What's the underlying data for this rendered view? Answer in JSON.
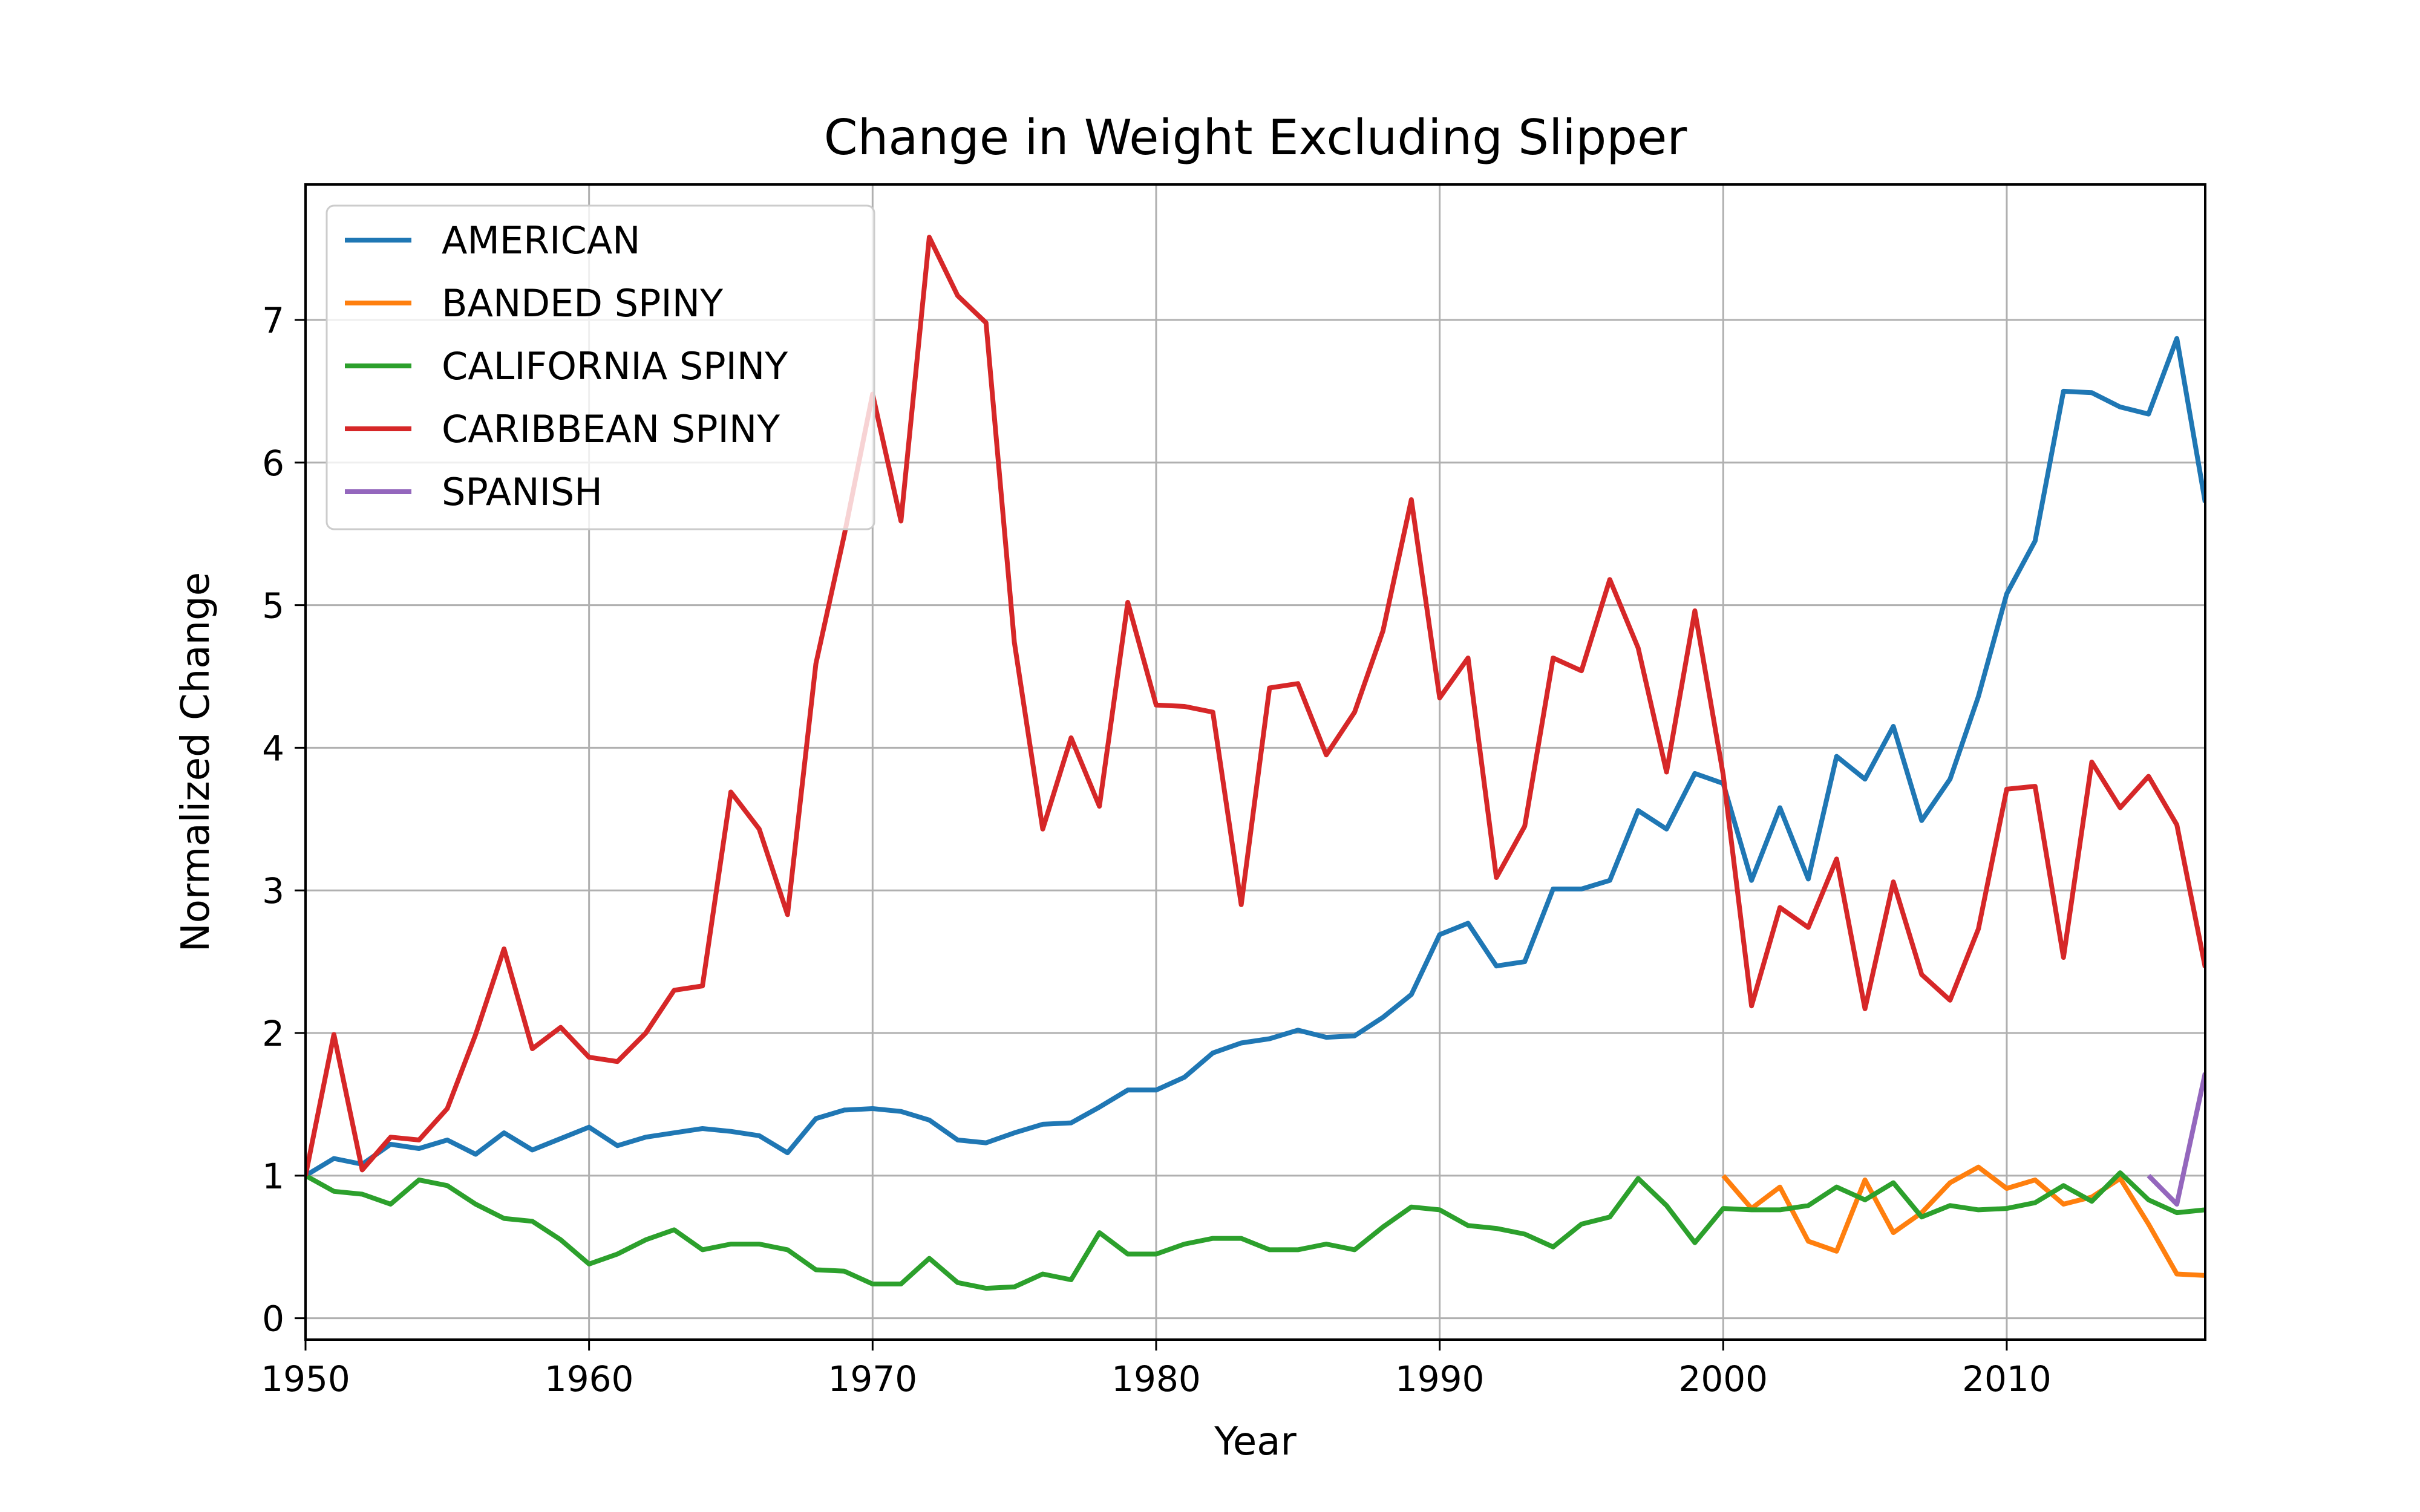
{
  "chart_data": {
    "type": "line",
    "title": "Change in Weight Excluding Slipper",
    "xlabel": "Year",
    "ylabel": "Normalized Change",
    "xlim": [
      1950,
      2017
    ],
    "ylim": [
      -0.15,
      7.95
    ],
    "xticks": [
      1950,
      1960,
      1970,
      1980,
      1990,
      2000,
      2010
    ],
    "yticks": [
      0,
      1,
      2,
      3,
      4,
      5,
      6,
      7
    ],
    "grid": true,
    "legend_position": "top-left",
    "series": [
      {
        "name": "AMERICAN",
        "color": "#1f77b4",
        "x_start": 1950,
        "values": [
          1.0,
          1.12,
          1.08,
          1.22,
          1.19,
          1.25,
          1.15,
          1.3,
          1.18,
          1.26,
          1.34,
          1.21,
          1.27,
          1.3,
          1.33,
          1.31,
          1.28,
          1.16,
          1.4,
          1.46,
          1.47,
          1.45,
          1.39,
          1.25,
          1.23,
          1.3,
          1.36,
          1.37,
          1.48,
          1.6,
          1.6,
          1.69,
          1.86,
          1.93,
          1.96,
          2.02,
          1.97,
          1.98,
          2.11,
          2.27,
          2.69,
          2.77,
          2.47,
          2.5,
          3.01,
          3.01,
          3.07,
          3.56,
          3.43,
          3.82,
          3.75,
          3.07,
          3.58,
          3.08,
          3.94,
          3.78,
          4.15,
          3.49,
          3.78,
          4.36,
          5.08,
          5.45,
          6.5,
          6.49,
          6.39,
          6.34,
          6.87,
          5.72
        ]
      },
      {
        "name": "BANDED SPINY",
        "color": "#ff7f0e",
        "x_start": 2000,
        "values": [
          1.0,
          0.77,
          0.92,
          0.54,
          0.47,
          0.97,
          0.6,
          0.74,
          0.95,
          1.06,
          0.91,
          0.97,
          0.8,
          0.85,
          0.98,
          0.66,
          0.31,
          0.3
        ]
      },
      {
        "name": "CALIFORNIA SPINY",
        "color": "#2ca02c",
        "x_start": 1950,
        "values": [
          1.0,
          0.89,
          0.87,
          0.8,
          0.97,
          0.93,
          0.8,
          0.7,
          0.68,
          0.55,
          0.38,
          0.45,
          0.55,
          0.62,
          0.48,
          0.52,
          0.52,
          0.48,
          0.34,
          0.33,
          0.24,
          0.24,
          0.42,
          0.25,
          0.21,
          0.22,
          0.31,
          0.27,
          0.6,
          0.45,
          0.45,
          0.52,
          0.56,
          0.56,
          0.48,
          0.48,
          0.52,
          0.48,
          0.64,
          0.78,
          0.76,
          0.65,
          0.63,
          0.59,
          0.5,
          0.66,
          0.71,
          0.98,
          0.79,
          0.53,
          0.77,
          0.76,
          0.76,
          0.79,
          0.92,
          0.83,
          0.95,
          0.71,
          0.79,
          0.76,
          0.77,
          0.81,
          0.93,
          0.82,
          1.02,
          0.83,
          0.74,
          0.76
        ]
      },
      {
        "name": "CARIBBEAN SPINY",
        "color": "#d62728",
        "x_start": 1950,
        "values": [
          1.0,
          1.99,
          1.04,
          1.27,
          1.25,
          1.47,
          1.99,
          2.59,
          1.89,
          2.04,
          1.83,
          1.8,
          2.0,
          2.3,
          2.33,
          3.69,
          3.43,
          2.83,
          4.59,
          5.49,
          6.48,
          5.59,
          7.58,
          7.17,
          6.98,
          4.74,
          3.43,
          4.07,
          3.59,
          5.02,
          4.3,
          4.29,
          4.25,
          2.9,
          4.42,
          4.45,
          3.95,
          4.25,
          4.82,
          5.74,
          4.35,
          4.63,
          3.09,
          3.45,
          4.63,
          4.54,
          5.18,
          4.7,
          3.83,
          4.96,
          3.81,
          2.19,
          2.88,
          2.74,
          3.22,
          2.17,
          3.06,
          2.41,
          2.23,
          2.73,
          3.71,
          3.73,
          2.53,
          3.9,
          3.58,
          3.8,
          3.46,
          2.46
        ]
      },
      {
        "name": "SPANISH",
        "color": "#9467bd",
        "x_start": 2015,
        "values": [
          1.0,
          0.8,
          1.72
        ]
      }
    ]
  }
}
